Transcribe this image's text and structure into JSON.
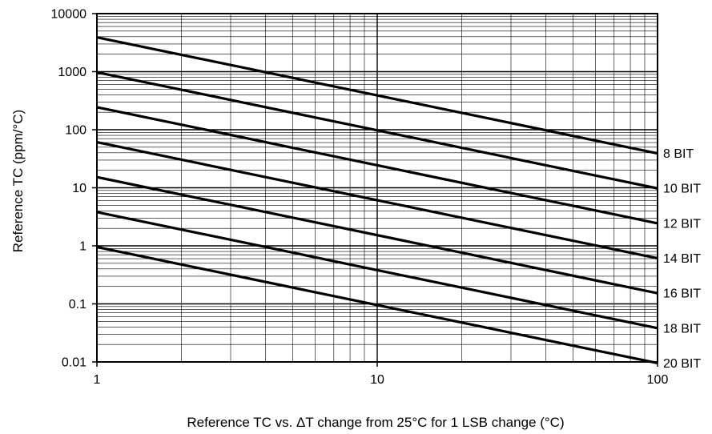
{
  "chart_data": {
    "type": "line",
    "title": "",
    "xlabel": "Reference TC vs. ΔT change from 25°C for 1 LSB change (°C)",
    "ylabel": "Reference TC (ppm/°C)",
    "xscale": "log",
    "yscale": "log",
    "xlim": [
      1,
      100
    ],
    "ylim": [
      0.01,
      10000
    ],
    "x_tick_labels": [
      "1",
      "10",
      "100"
    ],
    "y_tick_labels": [
      "0.01",
      "0.1",
      "1",
      "10",
      "100",
      "1000",
      "10000"
    ],
    "grid": "major and minor",
    "line_color": "#000000",
    "x": [
      1,
      100
    ],
    "series": [
      {
        "name": "8 BIT",
        "values": [
          3906.25,
          39.0625
        ]
      },
      {
        "name": "10 BIT",
        "values": [
          976.5625,
          9.765625
        ]
      },
      {
        "name": "12 BIT",
        "values": [
          244.140625,
          2.44140625
        ]
      },
      {
        "name": "14 BIT",
        "values": [
          61.03515625,
          0.6103515625
        ]
      },
      {
        "name": "16 BIT",
        "values": [
          15.2587890625,
          0.152587890625
        ]
      },
      {
        "name": "18 BIT",
        "values": [
          3.814697265625,
          0.03814697265625
        ]
      },
      {
        "name": "20 BIT",
        "values": [
          0.95367431640625,
          0.0095367431640625
        ]
      }
    ]
  }
}
